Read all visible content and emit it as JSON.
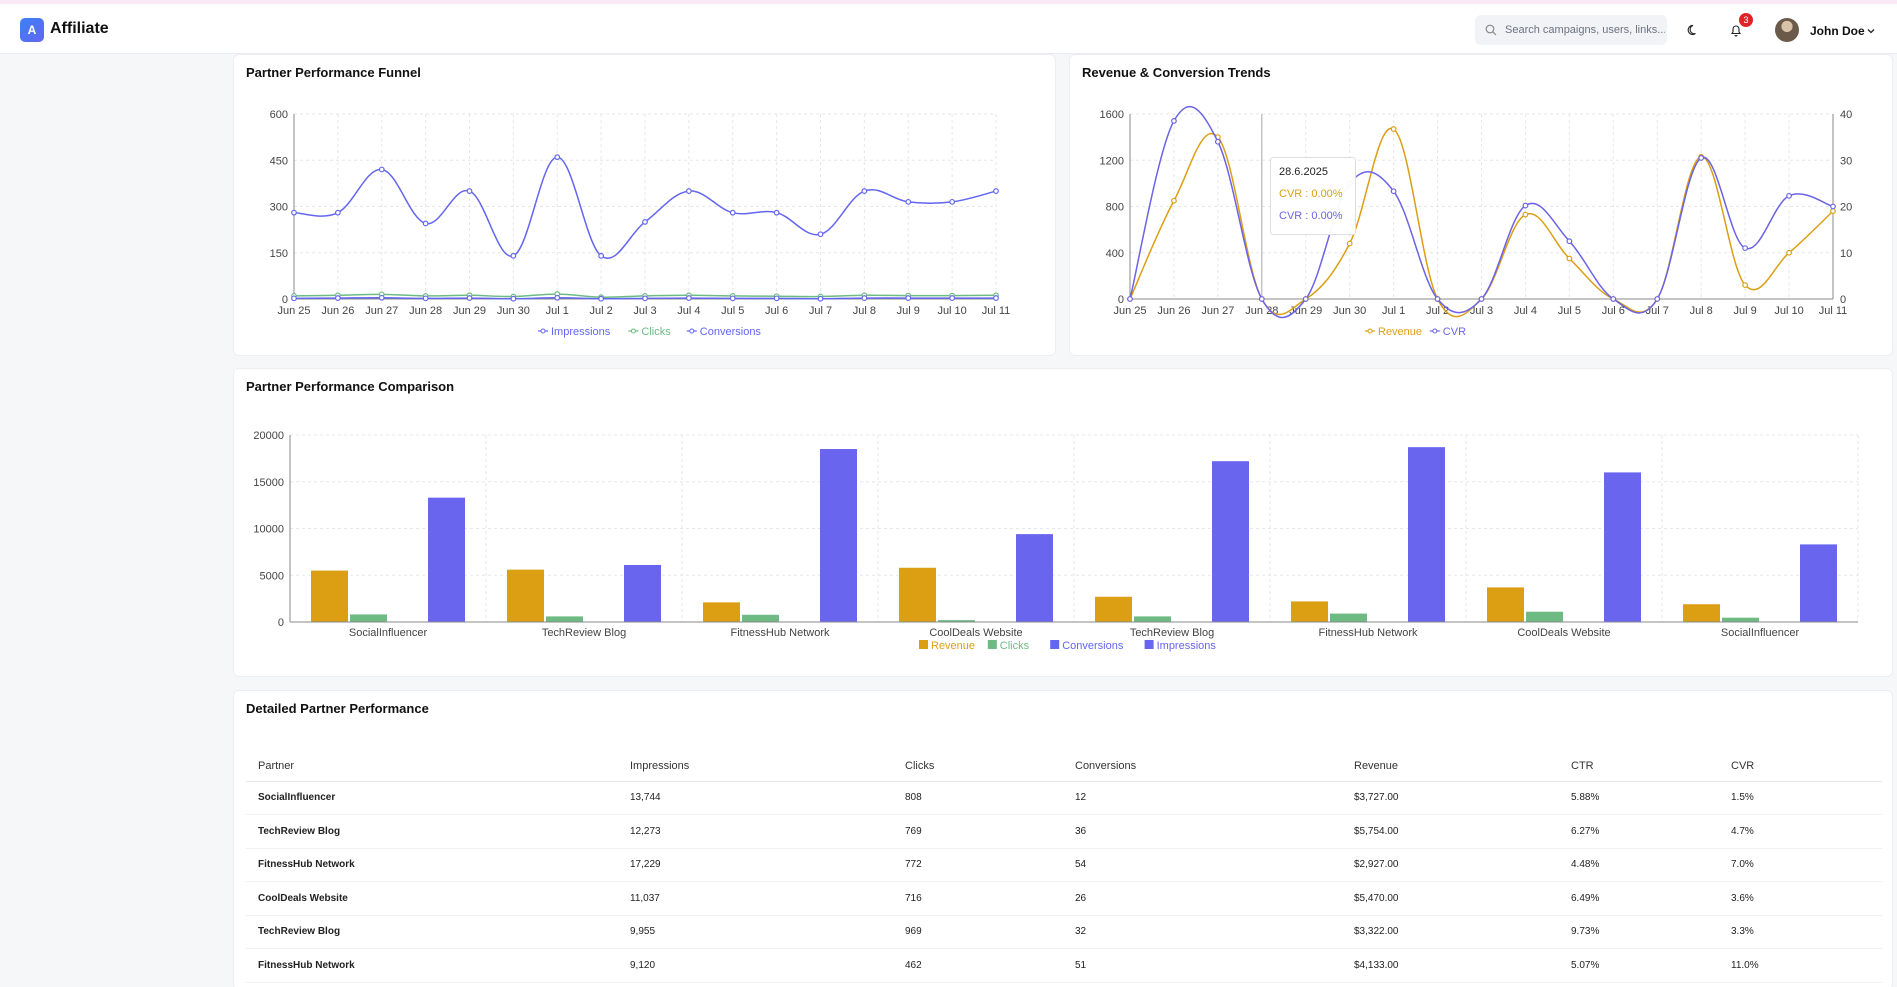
{
  "app": {
    "brand_letter": "A",
    "brand_name": "Affiliate",
    "search_placeholder": "Search campaigns, users, links...",
    "notification_count": "3",
    "user_name": "John Doe"
  },
  "icons": {
    "search": "search-icon",
    "theme": "moon-icon",
    "notifications": "bell-icon",
    "user_menu": "chevron-down-icon"
  },
  "colors": {
    "impressions": "#6366f1",
    "clicks": "#6dbb83",
    "conversions": "#6366f1",
    "revenue": "#dc9e13",
    "cvr": "#6c63e6",
    "bar_impressions": "#6a65ef"
  },
  "funnel": {
    "title": "Partner Performance Funnel",
    "chart_data": {
      "type": "line",
      "categories": [
        "Jun 25",
        "Jun 26",
        "Jun 27",
        "Jun 28",
        "Jun 29",
        "Jun 30",
        "Jul 1",
        "Jul 2",
        "Jul 3",
        "Jul 4",
        "Jul 5",
        "Jul 6",
        "Jul 7",
        "Jul 8",
        "Jul 9",
        "Jul 10",
        "Jul 11"
      ],
      "ylim": [
        0,
        600
      ],
      "yticks": [
        0,
        150,
        300,
        450,
        600
      ],
      "series": [
        {
          "name": "Impressions",
          "values": [
            280,
            280,
            420,
            245,
            350,
            140,
            460,
            140,
            250,
            350,
            280,
            280,
            210,
            350,
            315,
            315,
            350
          ]
        },
        {
          "name": "Clicks",
          "values": [
            10,
            12,
            15,
            10,
            12,
            8,
            16,
            6,
            10,
            12,
            10,
            9,
            8,
            12,
            11,
            11,
            12
          ]
        },
        {
          "name": "Conversions",
          "values": [
            2,
            3,
            4,
            2,
            3,
            1,
            4,
            1,
            2,
            3,
            2,
            2,
            1,
            3,
            3,
            3,
            3
          ]
        }
      ],
      "grid": true,
      "legend": "bottom"
    }
  },
  "trends": {
    "title": "Revenue & Conversion Trends",
    "chart_data": {
      "type": "line",
      "categories": [
        "Jun 25",
        "Jun 26",
        "Jun 27",
        "Jun 28",
        "Jun 29",
        "Jun 30",
        "Jul 1",
        "Jul 2",
        "Jul 3",
        "Jul 4",
        "Jul 5",
        "Jul 6",
        "Jul 7",
        "Jul 8",
        "Jul 9",
        "Jul 10",
        "Jul 11"
      ],
      "ylim_left": [
        0,
        1600
      ],
      "yticks_left": [
        0,
        400,
        800,
        1200,
        1600
      ],
      "ylim_right": [
        0,
        40
      ],
      "yticks_right": [
        0,
        10,
        20,
        30,
        40
      ],
      "series": [
        {
          "name": "Revenue",
          "axis": "left",
          "values": [
            0,
            850,
            1400,
            0,
            0,
            480,
            1470,
            0,
            0,
            730,
            350,
            0,
            0,
            1230,
            120,
            400,
            760
          ]
        },
        {
          "name": "CVR",
          "axis": "right",
          "values": [
            0,
            38.5,
            34,
            0,
            0,
            25,
            23.3,
            0,
            0,
            20.2,
            12.5,
            0,
            0,
            30.5,
            11,
            22.3,
            20
          ]
        }
      ],
      "grid": true,
      "legend": "bottom"
    },
    "tooltip": {
      "date": "28.6.2025",
      "line1": "CVR : 0.00%",
      "line2": "CVR : 0.00%"
    }
  },
  "comparison": {
    "title": "Partner Performance Comparison",
    "chart_data": {
      "type": "bar",
      "categories": [
        "SocialInfluencer",
        "TechReview Blog",
        "FitnessHub Network",
        "CoolDeals Website",
        "TechReview Blog",
        "FitnessHub Network",
        "CoolDeals Website",
        "SocialInfluencer"
      ],
      "ylim": [
        0,
        20000
      ],
      "yticks": [
        0,
        5000,
        10000,
        15000,
        20000
      ],
      "series": [
        {
          "name": "Revenue",
          "values": [
            5500,
            5600,
            2100,
            5800,
            2700,
            2200,
            3700,
            1900
          ]
        },
        {
          "name": "Clicks",
          "values": [
            808,
            600,
            772,
            200,
            600,
            900,
            1100,
            462
          ]
        },
        {
          "name": "Conversions",
          "values": [
            12,
            36,
            54,
            26,
            32,
            51,
            20,
            40
          ]
        },
        {
          "name": "Impressions",
          "values": [
            13300,
            6100,
            18500,
            9400,
            17200,
            18700,
            16000,
            8300
          ]
        }
      ],
      "grid": true,
      "legend": "bottom"
    }
  },
  "detailed": {
    "title": "Detailed Partner Performance",
    "columns": [
      "Partner",
      "Impressions",
      "Clicks",
      "Conversions",
      "Revenue",
      "CTR",
      "CVR"
    ],
    "rows": [
      [
        "SocialInfluencer",
        "13,744",
        "808",
        "12",
        "$3,727.00",
        "5.88%",
        "1.5%"
      ],
      [
        "TechReview Blog",
        "12,273",
        "769",
        "36",
        "$5,754.00",
        "6.27%",
        "4.7%"
      ],
      [
        "FitnessHub Network",
        "17,229",
        "772",
        "54",
        "$2,927.00",
        "4.48%",
        "7.0%"
      ],
      [
        "CoolDeals Website",
        "11,037",
        "716",
        "26",
        "$5,470.00",
        "6.49%",
        "3.6%"
      ],
      [
        "TechReview Blog",
        "9,955",
        "969",
        "32",
        "$3,322.00",
        "9.73%",
        "3.3%"
      ],
      [
        "FitnessHub Network",
        "9,120",
        "462",
        "51",
        "$4,133.00",
        "5.07%",
        "11.0%"
      ]
    ]
  }
}
